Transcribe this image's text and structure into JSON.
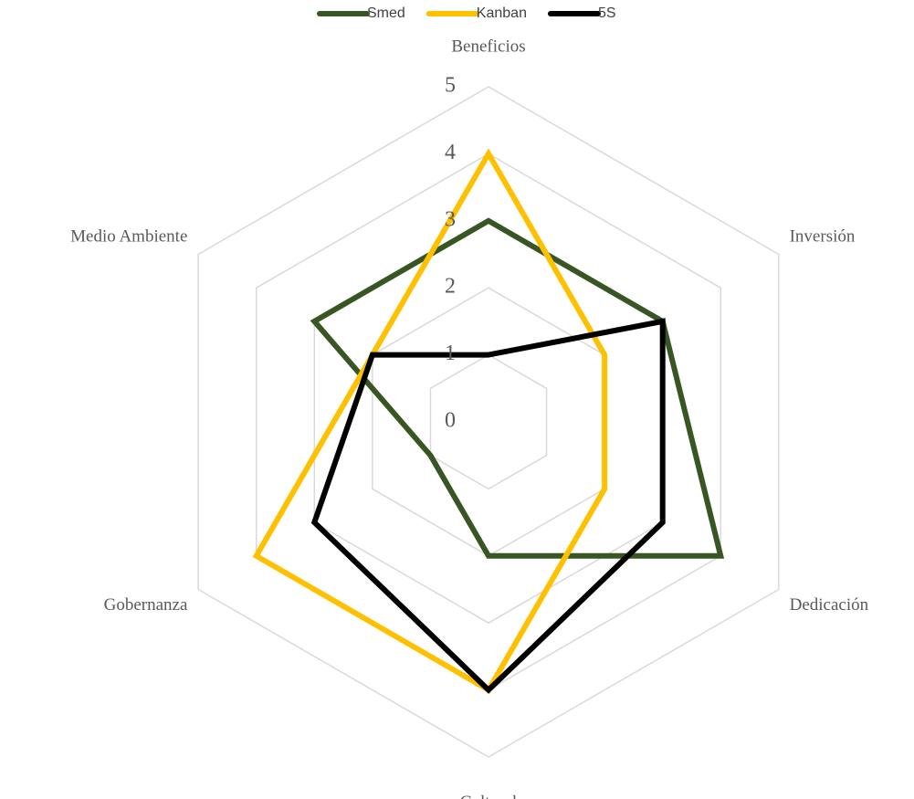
{
  "chart_data": {
    "type": "radar",
    "categories": [
      "Beneficios",
      "Inversión",
      "Dedicación",
      "Cultural",
      "Gobernanza",
      "Medio Ambiente"
    ],
    "series": [
      {
        "name": "Smed",
        "color": "#375623",
        "values": [
          3,
          3,
          4,
          2,
          1,
          3
        ]
      },
      {
        "name": "Kanban",
        "color": "#ffc000",
        "values": [
          4,
          2,
          2,
          4,
          4,
          2
        ]
      },
      {
        "name": "5S",
        "color": "#000000",
        "values": [
          1,
          3,
          3,
          4,
          3,
          2
        ]
      }
    ],
    "ylim": [
      0,
      5
    ],
    "yticks": [
      0,
      1,
      2,
      3,
      4,
      5
    ],
    "grid": true,
    "legend": "top"
  }
}
